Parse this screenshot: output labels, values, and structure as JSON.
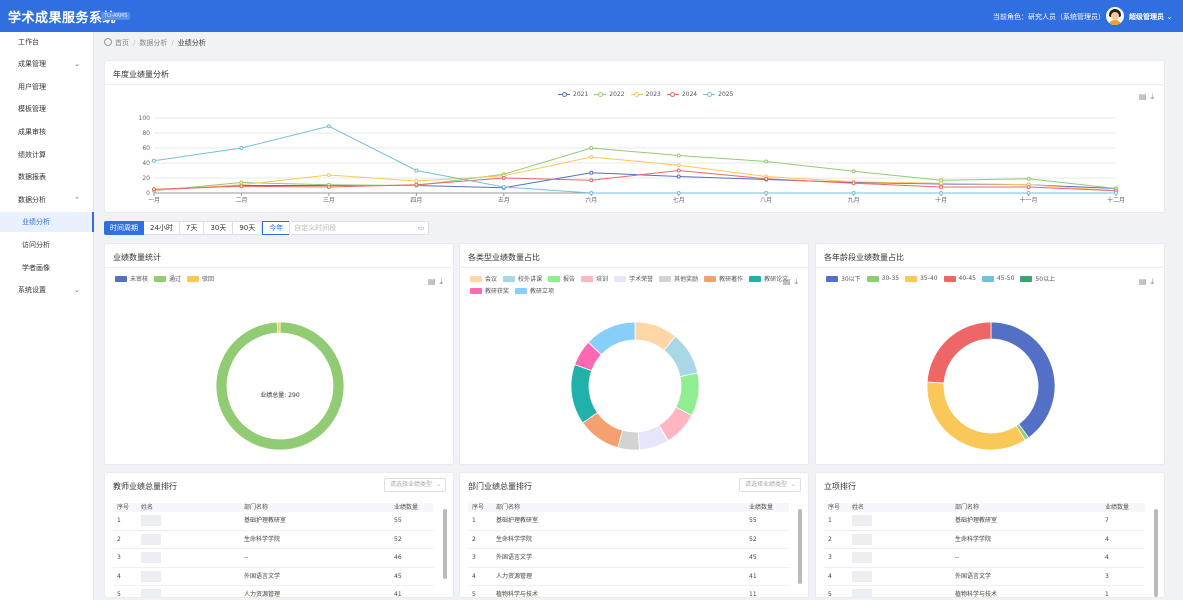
{
  "header": {
    "title": "学术成果服务系统",
    "version": "TLI-ARMS",
    "role_label": "当前角色：研究人员（系统管理员）",
    "user_name": "超级管理员"
  },
  "sidebar": {
    "items": [
      {
        "label": "工作台"
      },
      {
        "label": "成果管理"
      },
      {
        "label": "用户管理"
      },
      {
        "label": "模板管理"
      },
      {
        "label": "成果审核"
      },
      {
        "label": "绩效计算"
      },
      {
        "label": "数据报表"
      },
      {
        "label": "数据分析"
      },
      {
        "label": "业绩分析"
      },
      {
        "label": "访问分析"
      },
      {
        "label": "学者画像"
      },
      {
        "label": "系统设置"
      }
    ]
  },
  "breadcrumb": {
    "home": "首页",
    "level1": "数据分析",
    "current": "业绩分析"
  },
  "annual_card": {
    "title": "年度业绩量分析"
  },
  "period": {
    "label": "时间周期",
    "options": [
      "24小时",
      "7天",
      "30天",
      "90天",
      "今年"
    ],
    "selected": "今年",
    "range_placeholder": "自定义时间段"
  },
  "count_card": {
    "title": "业绩数量统计",
    "center_text": "业绩总量: 290"
  },
  "type_card": {
    "title": "各类型业绩数量占比"
  },
  "age_card": {
    "title": "各年龄段业绩数量占比"
  },
  "teacher_rank": {
    "title": "教师业绩总量排行",
    "select_placeholder": "请选择业绩类型",
    "headers": [
      "序号",
      "姓名",
      "部门名称",
      "业绩数量"
    ],
    "rows": [
      {
        "no": "1",
        "dept": "基础护理教研室",
        "count": "55"
      },
      {
        "no": "2",
        "dept": "生命科学学院",
        "count": "52"
      },
      {
        "no": "3",
        "dept": "--",
        "count": "46"
      },
      {
        "no": "4",
        "dept": "外国语言文学",
        "count": "45"
      },
      {
        "no": "5",
        "dept": "人力资源管理",
        "count": "41"
      }
    ]
  },
  "dept_rank": {
    "title": "部门业绩总量排行",
    "select_placeholder": "请选择业绩类型",
    "headers": [
      "序号",
      "部门名称",
      "业绩数量"
    ],
    "rows": [
      {
        "no": "1",
        "dept": "基础护理教研室",
        "count": "55"
      },
      {
        "no": "2",
        "dept": "生命科学学院",
        "count": "52"
      },
      {
        "no": "3",
        "dept": "外国语言文学",
        "count": "45"
      },
      {
        "no": "4",
        "dept": "人力资源管理",
        "count": "41"
      },
      {
        "no": "5",
        "dept": "植物科学与技术",
        "count": "11"
      }
    ]
  },
  "project_rank": {
    "title": "立项排行",
    "headers": [
      "序号",
      "姓名",
      "部门名称",
      "业绩数量"
    ],
    "rows": [
      {
        "no": "1",
        "dept": "基础护理教研室",
        "count": "7"
      },
      {
        "no": "2",
        "dept": "生命科学学院",
        "count": "4"
      },
      {
        "no": "3",
        "dept": "--",
        "count": "4"
      },
      {
        "no": "4",
        "dept": "外国语言文学",
        "count": "3"
      },
      {
        "no": "5",
        "dept": "植物科学与技术",
        "count": "1"
      }
    ]
  },
  "icons": {
    "export": "document-icon",
    "download": "download-icon"
  },
  "chart_data": [
    {
      "type": "line",
      "title": "年度业绩量分析",
      "categories": [
        "一月",
        "二月",
        "三月",
        "四月",
        "五月",
        "六月",
        "七月",
        "八月",
        "九月",
        "十月",
        "十一月",
        "十二月"
      ],
      "yticks": [
        0,
        20,
        40,
        60,
        80,
        100
      ],
      "ylim": [
        0,
        100
      ],
      "legend_position": "top-center",
      "series": [
        {
          "name": "2021",
          "color": "#5470c6",
          "values": [
            4,
            10,
            10,
            10,
            7,
            27,
            22,
            18,
            14,
            12,
            11,
            6
          ]
        },
        {
          "name": "2022",
          "color": "#91cc75",
          "values": [
            3,
            14,
            11,
            10,
            25,
            60,
            50,
            42,
            29,
            17,
            19,
            6
          ]
        },
        {
          "name": "2023",
          "color": "#fac858",
          "values": [
            4,
            11,
            24,
            16,
            23,
            48,
            37,
            22,
            15,
            13,
            11,
            3
          ]
        },
        {
          "name": "2024",
          "color": "#ee6666",
          "values": [
            5,
            9,
            8,
            11,
            20,
            17,
            30,
            19,
            13,
            8,
            8,
            3
          ]
        },
        {
          "name": "2025",
          "color": "#73c0de",
          "values": [
            43,
            60,
            89,
            30,
            8,
            0,
            0,
            0,
            0,
            0,
            0,
            0
          ]
        }
      ]
    },
    {
      "type": "pie",
      "title": "业绩数量统计",
      "labels": [
        "未审核",
        "通过",
        "驳回"
      ],
      "colors": [
        "#5470c6",
        "#91cc75",
        "#fac858"
      ],
      "values": [
        0,
        288,
        2
      ]
    },
    {
      "type": "pie",
      "title": "各类型业绩数量占比",
      "labels": [
        "会议",
        "校外讲课",
        "报告",
        "培训",
        "学术荣誉",
        "其他奖励",
        "教研著作",
        "教研论文",
        "教研获奖",
        "教研立项"
      ],
      "colors": [
        "#ffd6a5",
        "#a8d8e6",
        "#90ee90",
        "#ffb6c1",
        "#e6e6fa",
        "#d3d3d3",
        "#f4a070",
        "#20b2aa",
        "#ff69b4",
        "#87cefa"
      ],
      "values": [
        10,
        10,
        10,
        8,
        7,
        5,
        10,
        14,
        6,
        12
      ]
    },
    {
      "type": "pie",
      "title": "各年龄段业绩数量占比",
      "labels": [
        "30以下",
        "30-35",
        "35-40",
        "40-45",
        "45-50",
        "50以上"
      ],
      "colors": [
        "#5470c6",
        "#91cc75",
        "#fac858",
        "#ee6666",
        "#73c0de",
        "#3ba272"
      ],
      "values": [
        40,
        1,
        35,
        24,
        0,
        0
      ]
    }
  ]
}
